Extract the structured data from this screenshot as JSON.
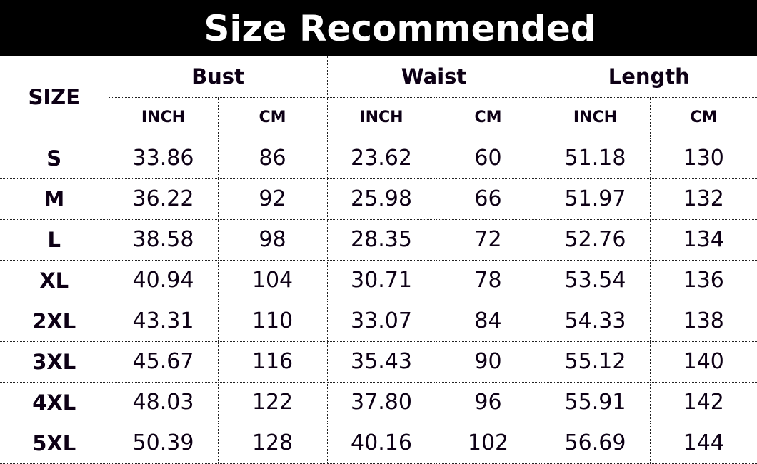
{
  "title": "Size Recommended",
  "size_header": "SIZE",
  "groups": [
    "Bust",
    "Waist",
    "Length"
  ],
  "units": [
    "INCH",
    "CM",
    "INCH",
    "CM",
    "INCH",
    "CM"
  ],
  "rows": [
    {
      "size": "S",
      "values": [
        "33.86",
        "86",
        "23.62",
        "60",
        "51.18",
        "130"
      ]
    },
    {
      "size": "M",
      "values": [
        "36.22",
        "92",
        "25.98",
        "66",
        "51.97",
        "132"
      ]
    },
    {
      "size": "L",
      "values": [
        "38.58",
        "98",
        "28.35",
        "72",
        "52.76",
        "134"
      ]
    },
    {
      "size": "XL",
      "values": [
        "40.94",
        "104",
        "30.71",
        "78",
        "53.54",
        "136"
      ]
    },
    {
      "size": "2XL",
      "values": [
        "43.31",
        "110",
        "33.07",
        "84",
        "54.33",
        "138"
      ]
    },
    {
      "size": "3XL",
      "values": [
        "45.67",
        "116",
        "35.43",
        "90",
        "55.12",
        "140"
      ]
    },
    {
      "size": "4XL",
      "values": [
        "48.03",
        "122",
        "37.80",
        "96",
        "55.91",
        "142"
      ]
    },
    {
      "size": "5XL",
      "values": [
        "50.39",
        "128",
        "40.16",
        "102",
        "56.69",
        "144"
      ]
    }
  ]
}
